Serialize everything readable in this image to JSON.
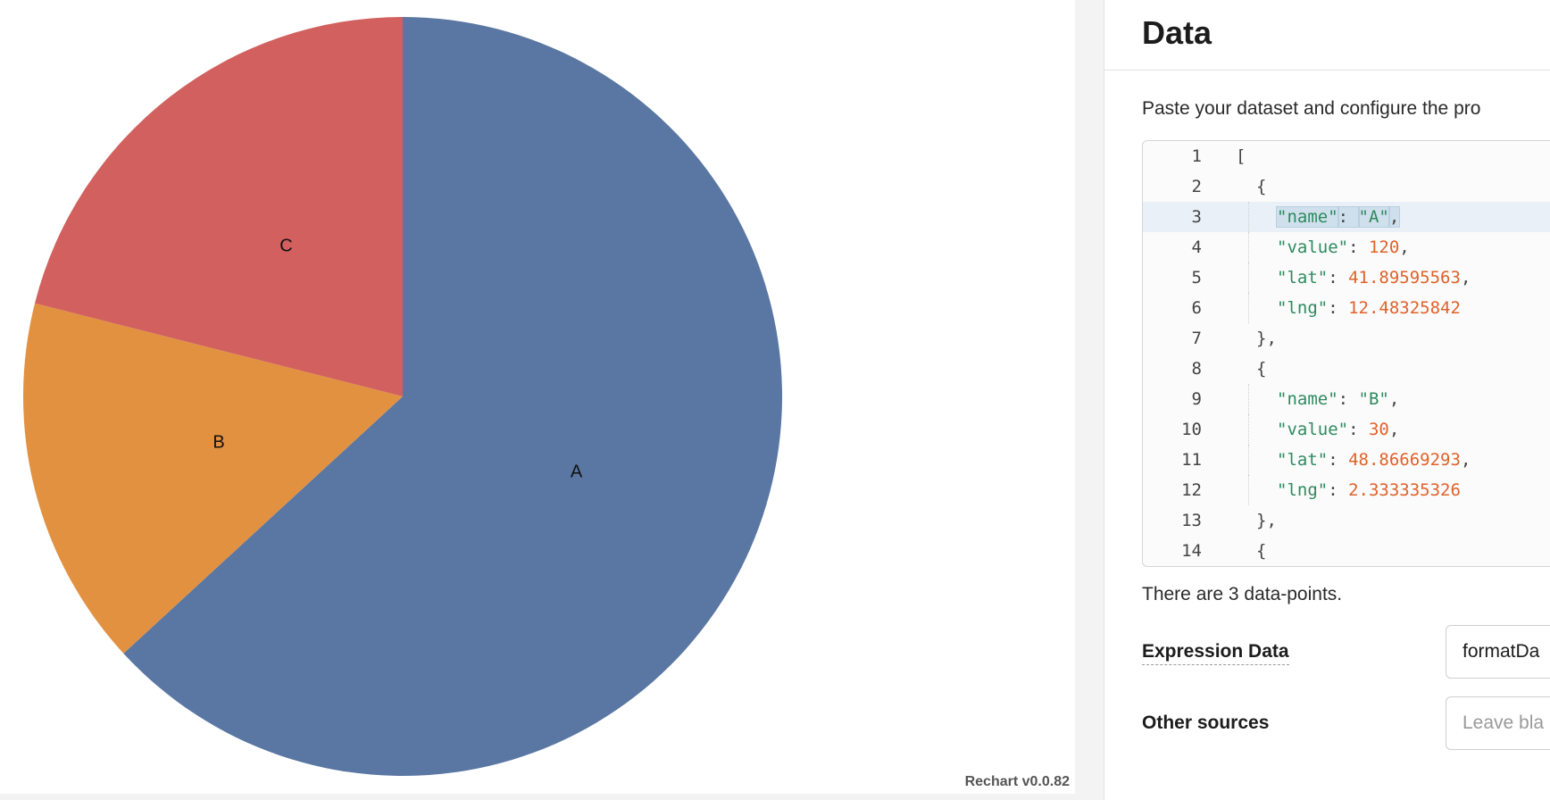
{
  "chart_data": {
    "type": "pie",
    "title": "",
    "slices": [
      {
        "name": "A",
        "value": 120,
        "color": "#5977a2"
      },
      {
        "name": "B",
        "value": 30,
        "color": "#e29141"
      },
      {
        "name": "C",
        "value": 40,
        "color": "#d1605e"
      }
    ]
  },
  "app": {
    "version_label": "Rechart v0.0.82"
  },
  "panel": {
    "title": "Data",
    "intro": "Paste your dataset and configure the pro",
    "count_text": "There are 3 data-points."
  },
  "editor": {
    "lines": [
      {
        "num": "1",
        "indent": 0,
        "tokens": [
          {
            "t": "p",
            "v": "["
          }
        ]
      },
      {
        "num": "2",
        "indent": 1,
        "tokens": [
          {
            "t": "p",
            "v": "{"
          }
        ]
      },
      {
        "num": "3",
        "indent": 2,
        "active": true,
        "tokens": [
          {
            "t": "key",
            "v": "\"name\"",
            "sel": true
          },
          {
            "t": "p",
            "v": ": ",
            "sel": true
          },
          {
            "t": "str",
            "v": "\"A\"",
            "sel": true
          },
          {
            "t": "p",
            "v": ",",
            "sel": true
          }
        ]
      },
      {
        "num": "4",
        "indent": 2,
        "tokens": [
          {
            "t": "key",
            "v": "\"value\""
          },
          {
            "t": "p",
            "v": ": "
          },
          {
            "t": "num",
            "v": "120"
          },
          {
            "t": "p",
            "v": ","
          }
        ]
      },
      {
        "num": "5",
        "indent": 2,
        "tokens": [
          {
            "t": "key",
            "v": "\"lat\""
          },
          {
            "t": "p",
            "v": ": "
          },
          {
            "t": "num",
            "v": "41.89595563"
          },
          {
            "t": "p",
            "v": ","
          }
        ]
      },
      {
        "num": "6",
        "indent": 2,
        "tokens": [
          {
            "t": "key",
            "v": "\"lng\""
          },
          {
            "t": "p",
            "v": ": "
          },
          {
            "t": "num",
            "v": "12.48325842"
          }
        ]
      },
      {
        "num": "7",
        "indent": 1,
        "tokens": [
          {
            "t": "p",
            "v": "},"
          }
        ]
      },
      {
        "num": "8",
        "indent": 1,
        "tokens": [
          {
            "t": "p",
            "v": "{"
          }
        ]
      },
      {
        "num": "9",
        "indent": 2,
        "tokens": [
          {
            "t": "key",
            "v": "\"name\""
          },
          {
            "t": "p",
            "v": ": "
          },
          {
            "t": "str",
            "v": "\"B\""
          },
          {
            "t": "p",
            "v": ","
          }
        ]
      },
      {
        "num": "10",
        "indent": 2,
        "tokens": [
          {
            "t": "key",
            "v": "\"value\""
          },
          {
            "t": "p",
            "v": ": "
          },
          {
            "t": "num",
            "v": "30"
          },
          {
            "t": "p",
            "v": ","
          }
        ]
      },
      {
        "num": "11",
        "indent": 2,
        "tokens": [
          {
            "t": "key",
            "v": "\"lat\""
          },
          {
            "t": "p",
            "v": ": "
          },
          {
            "t": "num",
            "v": "48.86669293"
          },
          {
            "t": "p",
            "v": ","
          }
        ]
      },
      {
        "num": "12",
        "indent": 2,
        "tokens": [
          {
            "t": "key",
            "v": "\"lng\""
          },
          {
            "t": "p",
            "v": ": "
          },
          {
            "t": "num",
            "v": "2.333335326"
          }
        ]
      },
      {
        "num": "13",
        "indent": 1,
        "tokens": [
          {
            "t": "p",
            "v": "},"
          }
        ]
      },
      {
        "num": "14",
        "indent": 1,
        "tokens": [
          {
            "t": "p",
            "v": "{"
          }
        ]
      }
    ]
  },
  "form": {
    "expression_label": "Expression Data",
    "expression_value": "formatDa",
    "other_label": "Other sources",
    "other_placeholder": "Leave bla"
  }
}
